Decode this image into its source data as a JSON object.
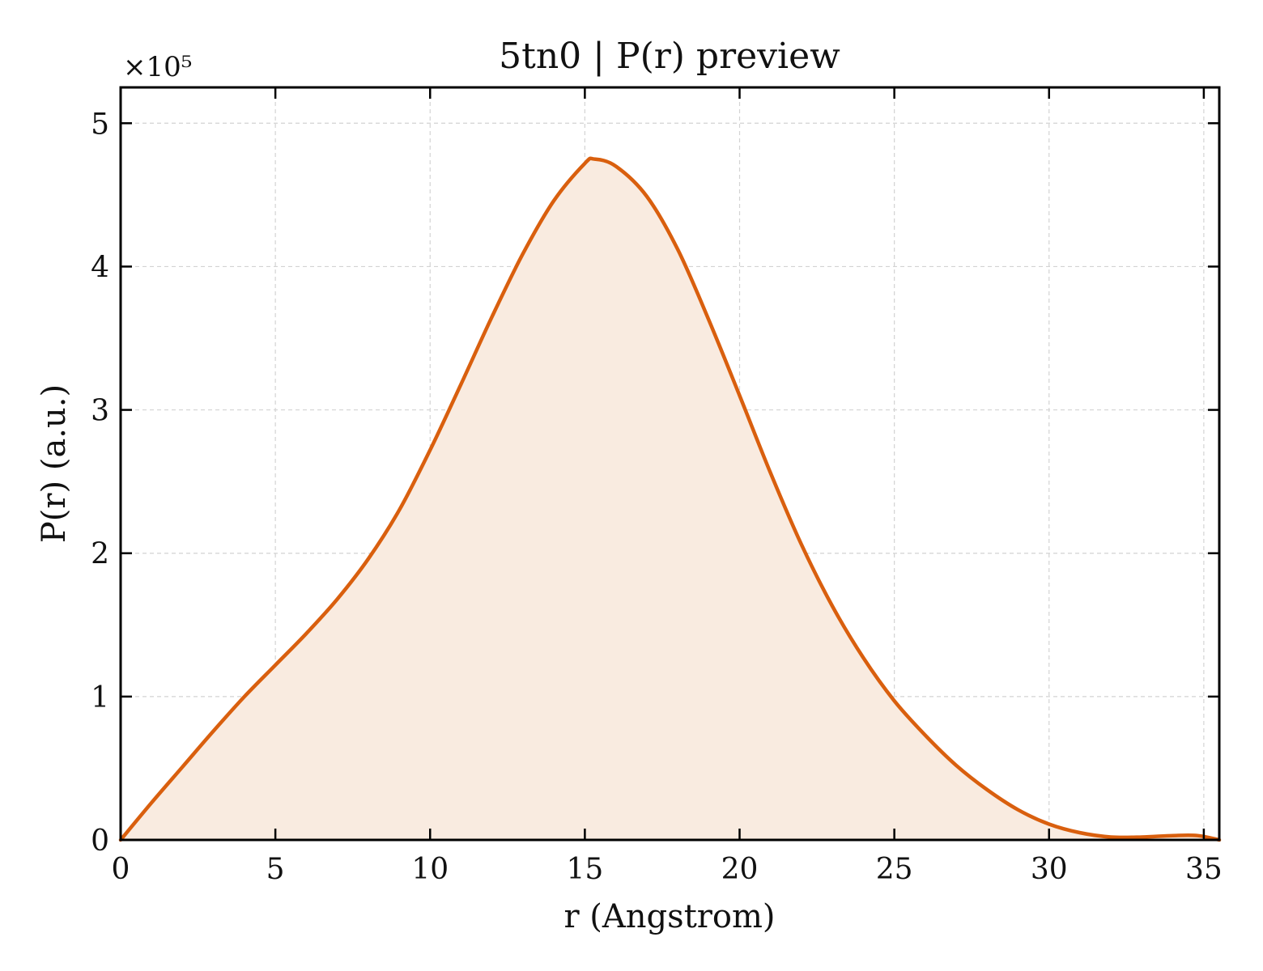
{
  "chart_data": {
    "type": "area",
    "title": "5tn0 | P(r) preview",
    "xlabel": "r (Angstrom)",
    "ylabel": "P(r) (a.u.)",
    "y_offset_label": "×10⁵",
    "xlim": [
      0,
      35.5
    ],
    "ylim": [
      0,
      5.25
    ],
    "x_ticks": [
      "0",
      "5",
      "10",
      "15",
      "20",
      "25",
      "30",
      "35"
    ],
    "y_ticks": [
      "0",
      "1",
      "2",
      "3",
      "4",
      "5"
    ],
    "grid": true,
    "line_color": "#d95f0e",
    "fill_color": "#f9ebe0",
    "series": [
      {
        "x": [
          0,
          1,
          2,
          3,
          4,
          5,
          6,
          7,
          8,
          9,
          10,
          11,
          12,
          13,
          14,
          15,
          15.3,
          16,
          17,
          18,
          19,
          20,
          21,
          22,
          23,
          24,
          25,
          26,
          27,
          28,
          29,
          30,
          31,
          32,
          33,
          34,
          34.8,
          35.5
        ],
        "y": [
          0,
          0.26,
          0.51,
          0.76,
          1.0,
          1.22,
          1.44,
          1.68,
          1.96,
          2.3,
          2.72,
          3.18,
          3.65,
          4.09,
          4.46,
          4.72,
          4.75,
          4.7,
          4.49,
          4.12,
          3.63,
          3.1,
          2.56,
          2.06,
          1.63,
          1.27,
          0.97,
          0.73,
          0.52,
          0.35,
          0.21,
          0.11,
          0.05,
          0.02,
          0.02,
          0.03,
          0.03,
          0.0
        ]
      }
    ]
  }
}
